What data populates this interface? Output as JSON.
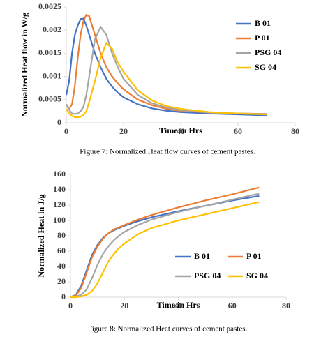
{
  "chart_data": [
    {
      "type": "line",
      "caption": "Figure 7: Normalized Heat flow curves of cement pastes.",
      "xlabel": "Time in Hrs",
      "ylabel": "Normalized Heat flow in W/g",
      "xlim": [
        0,
        80
      ],
      "xticks": [
        0,
        20,
        40,
        60,
        80
      ],
      "ylim": [
        0,
        0.0025
      ],
      "yticks": [
        0,
        0.0005,
        0.001,
        0.0015,
        0.002,
        0.0025
      ],
      "legend": "right",
      "x": [
        0,
        1,
        2,
        3,
        4,
        5,
        6,
        7,
        8,
        10,
        12,
        14,
        16,
        18,
        20,
        25,
        30,
        35,
        40,
        50,
        60,
        70
      ],
      "series": [
        {
          "name": "B 01",
          "color": "#4472c4",
          "values": [
            0.0006,
            0.0009,
            0.0015,
            0.0019,
            0.0021,
            0.00224,
            0.00225,
            0.0021,
            0.0019,
            0.0015,
            0.0012,
            0.00095,
            0.00078,
            0.00065,
            0.00055,
            0.0004,
            0.00031,
            0.00026,
            0.00023,
            0.0002,
            0.00018,
            0.00016
          ]
        },
        {
          "name": "P 01",
          "color": "#ed7d31",
          "values": [
            0.0004,
            0.0003,
            0.0004,
            0.0008,
            0.0014,
            0.0019,
            0.0022,
            0.00233,
            0.0023,
            0.0019,
            0.0015,
            0.0012,
            0.001,
            0.00085,
            0.00072,
            0.0005,
            0.00038,
            0.0003,
            0.00026,
            0.00022,
            0.0002,
            0.00019
          ]
        },
        {
          "name": "PSG 04",
          "color": "#a5a5a5",
          "values": [
            0.0004,
            0.00028,
            0.0002,
            0.00019,
            0.0002,
            0.00025,
            0.00035,
            0.0006,
            0.001,
            0.0018,
            0.00207,
            0.0019,
            0.0015,
            0.0012,
            0.00095,
            0.0006,
            0.00042,
            0.00033,
            0.00027,
            0.00022,
            0.0002,
            0.00019
          ]
        },
        {
          "name": "SG 04",
          "color": "#ffc000",
          "values": [
            0.0003,
            0.0002,
            0.00015,
            0.00012,
            0.00012,
            0.00013,
            0.00017,
            0.00025,
            0.00045,
            0.0009,
            0.0014,
            0.00172,
            0.0016,
            0.0013,
            0.0011,
            0.0007,
            0.00048,
            0.00036,
            0.0003,
            0.00023,
            0.0002,
            0.00018
          ]
        }
      ]
    },
    {
      "type": "line",
      "caption": "Figure 8: Normalized Heat curves of cement pastes.",
      "xlabel": "Time in Hrs",
      "ylabel": "Normalized Heat in J/g",
      "xlim": [
        0,
        80
      ],
      "xticks": [
        0,
        20,
        40,
        60,
        80
      ],
      "ylim": [
        0,
        160
      ],
      "yticks": [
        0,
        20,
        40,
        60,
        80,
        100,
        120,
        140,
        160
      ],
      "legend": "lower right",
      "x": [
        0,
        2,
        4,
        6,
        8,
        10,
        12,
        14,
        16,
        18,
        20,
        25,
        30,
        40,
        50,
        60,
        70
      ],
      "series": [
        {
          "name": "B 01",
          "color": "#4472c4",
          "values": [
            0,
            3,
            15,
            35,
            55,
            68,
            77,
            83,
            87,
            90,
            93,
            99,
            104,
            112,
            119,
            126,
            132
          ]
        },
        {
          "name": "P 01",
          "color": "#ed7d31",
          "values": [
            0,
            2,
            12,
            32,
            52,
            66,
            76,
            83,
            88,
            91,
            94,
            101,
            107,
            117,
            126,
            134,
            143
          ]
        },
        {
          "name": "PSG 04",
          "color": "#a5a5a5",
          "values": [
            0,
            1,
            3,
            10,
            25,
            42,
            56,
            66,
            74,
            80,
            85,
            94,
            101,
            111,
            119,
            127,
            135
          ]
        },
        {
          "name": "SG 04",
          "color": "#ffc000",
          "values": [
            0,
            0,
            1,
            3,
            8,
            18,
            32,
            46,
            56,
            64,
            70,
            82,
            90,
            100,
            108,
            116,
            124
          ]
        }
      ]
    }
  ]
}
